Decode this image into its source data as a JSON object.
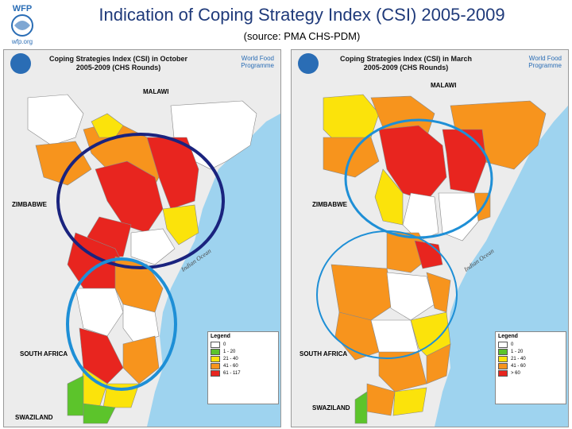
{
  "header": {
    "logo_text": "WFP",
    "logo_url": "wfp.org",
    "title": "Indication of Coping Strategy Index (CSI) 2005-2009",
    "subtitle": "(source: PMA CHS-PDM)"
  },
  "colors": {
    "red": "#e8251f",
    "orange": "#f7941d",
    "yellow": "#fbe30b",
    "green": "#5cc42b",
    "white": "#ffffff",
    "ocean": "#9ed3ef",
    "land": "#ececec",
    "navy_circle": "#1a237e",
    "blue_circle": "#1e8fd6"
  },
  "maps": [
    {
      "title_line1": "Coping Strategies Index (CSI) in October",
      "title_line2": "2005-2009 (CHS Rounds)",
      "agency": "World Food Programme",
      "labels": {
        "malawi": "MALAWI",
        "zimbabwe": "ZIMBABWE",
        "south_africa": "SOUTH AFRICA",
        "swaziland": "SWAZILAND",
        "ocean": "Indian Ocean"
      },
      "legend": {
        "title": "Legend",
        "items": [
          {
            "label": "0",
            "color": "#ffffff"
          },
          {
            "label": "1 - 20",
            "color": "#5cc42b"
          },
          {
            "label": "21 - 40",
            "color": "#fbe30b"
          },
          {
            "label": "41 - 60",
            "color": "#f7941d"
          },
          {
            "label": "61 - 117",
            "color": "#e8251f"
          }
        ]
      }
    },
    {
      "title_line1": "Coping Strategies Index (CSI) in March",
      "title_line2": "2005-2009 (CHS Rounds)",
      "agency": "World Food Programme",
      "labels": {
        "malawi": "MALAWI",
        "zimbabwe": "ZIMBABWE",
        "south_africa": "SOUTH AFRICA",
        "swaziland": "SWAZILAND",
        "ocean": "Indian Ocean"
      },
      "legend": {
        "title": "Legend",
        "items": [
          {
            "label": "0",
            "color": "#ffffff"
          },
          {
            "label": "1 - 20",
            "color": "#5cc42b"
          },
          {
            "label": "21 - 40",
            "color": "#fbe30b"
          },
          {
            "label": "41 - 60",
            "color": "#f7941d"
          },
          {
            "label": "> 60",
            "color": "#e8251f"
          }
        ]
      }
    }
  ]
}
